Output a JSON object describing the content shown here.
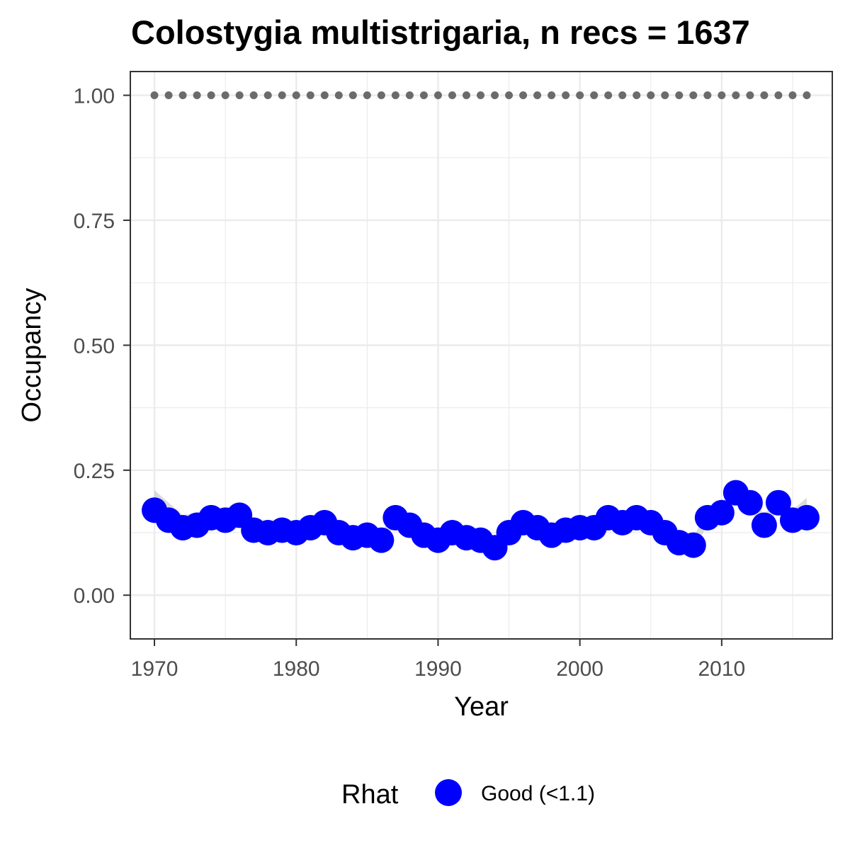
{
  "chart_data": {
    "type": "scatter",
    "title": "Colostygia multistrigaria, n recs = 1637",
    "xlabel": "Year",
    "ylabel": "Occupancy",
    "xlim": [
      1968.3,
      2017.8
    ],
    "ylim": [
      -0.0875,
      1.0475
    ],
    "x_ticks": [
      1970,
      1980,
      1990,
      2000,
      2010
    ],
    "x_minor_ticks": [
      1975,
      1985,
      1995,
      2005,
      2015
    ],
    "y_ticks": [
      0.0,
      0.25,
      0.5,
      0.75,
      1.0
    ],
    "y_tick_labels": [
      "0.00",
      "0.25",
      "0.50",
      "0.75",
      "1.00"
    ],
    "y_minor_ticks": [
      0.125,
      0.375,
      0.625,
      0.875
    ],
    "grid": true,
    "legend_position": "bottom",
    "legend": {
      "title": "Rhat",
      "entries": [
        {
          "label": "Good (<1.1)",
          "color": "#0000ff"
        }
      ]
    },
    "colors": {
      "points": "#0000ff",
      "ribbon": "#bebebe",
      "reference": "#6b6b6b",
      "grid": "#ebebeb",
      "frame": "#333333"
    },
    "x": [
      1970,
      1971,
      1972,
      1973,
      1974,
      1975,
      1976,
      1977,
      1978,
      1979,
      1980,
      1981,
      1982,
      1983,
      1984,
      1985,
      1986,
      1987,
      1988,
      1989,
      1990,
      1991,
      1992,
      1993,
      1994,
      1995,
      1996,
      1997,
      1998,
      1999,
      2000,
      2001,
      2002,
      2003,
      2004,
      2005,
      2006,
      2007,
      2008,
      2009,
      2010,
      2011,
      2012,
      2013,
      2014,
      2015,
      2016
    ],
    "series": [
      {
        "values": [
          0.17,
          0.15,
          0.135,
          0.14,
          0.155,
          0.15,
          0.16,
          0.13,
          0.125,
          0.13,
          0.125,
          0.135,
          0.145,
          0.125,
          0.115,
          0.12,
          0.11,
          0.155,
          0.14,
          0.12,
          0.11,
          0.125,
          0.115,
          0.11,
          0.095,
          0.125,
          0.145,
          0.135,
          0.12,
          0.13,
          0.135,
          0.135,
          0.155,
          0.145,
          0.155,
          0.145,
          0.125,
          0.105,
          0.1,
          0.155,
          0.165,
          0.205,
          0.185,
          0.14,
          0.185,
          0.15,
          0.155
        ],
        "lower": [
          0.145,
          0.125,
          0.115,
          0.125,
          0.14,
          0.14,
          0.145,
          0.12,
          0.115,
          0.12,
          0.115,
          0.125,
          0.13,
          0.115,
          0.105,
          0.11,
          0.1,
          0.14,
          0.125,
          0.11,
          0.1,
          0.115,
          0.105,
          0.1,
          0.085,
          0.115,
          0.13,
          0.125,
          0.11,
          0.12,
          0.125,
          0.125,
          0.14,
          0.135,
          0.14,
          0.135,
          0.115,
          0.095,
          0.09,
          0.14,
          0.15,
          0.185,
          0.17,
          0.13,
          0.17,
          0.14,
          0.14
        ],
        "upper": [
          0.21,
          0.185,
          0.16,
          0.165,
          0.175,
          0.175,
          0.18,
          0.15,
          0.14,
          0.145,
          0.14,
          0.15,
          0.16,
          0.14,
          0.13,
          0.135,
          0.125,
          0.17,
          0.155,
          0.135,
          0.125,
          0.14,
          0.13,
          0.125,
          0.11,
          0.14,
          0.16,
          0.15,
          0.135,
          0.145,
          0.15,
          0.15,
          0.17,
          0.16,
          0.17,
          0.16,
          0.14,
          0.12,
          0.115,
          0.17,
          0.18,
          0.225,
          0.205,
          0.16,
          0.2,
          0.17,
          0.195
        ]
      },
      {
        "values": [
          1,
          1,
          1,
          1,
          1,
          1,
          1,
          1,
          1,
          1,
          1,
          1,
          1,
          1,
          1,
          1,
          1,
          1,
          1,
          1,
          1,
          1,
          1,
          1,
          1,
          1,
          1,
          1,
          1,
          1,
          1,
          1,
          1,
          1,
          1,
          1,
          1,
          1,
          1,
          1,
          1,
          1,
          1,
          1,
          1,
          1,
          1
        ]
      }
    ]
  }
}
